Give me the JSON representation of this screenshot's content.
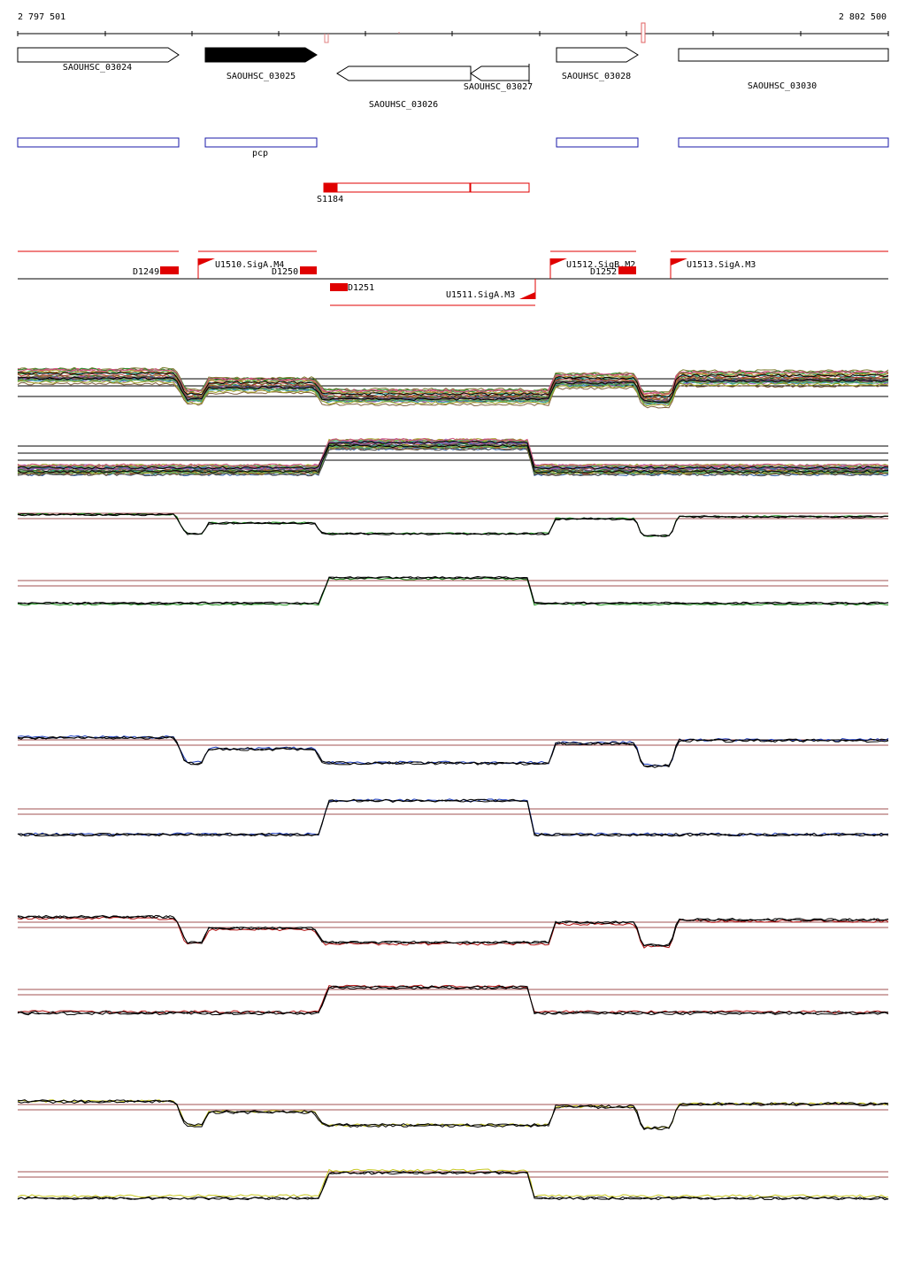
{
  "coords": {
    "start": "2 797 501",
    "end": "2 802 500"
  },
  "genes": [
    {
      "id": "g24",
      "label": "SAOUHSC_03024",
      "strand": "+",
      "filled": false
    },
    {
      "id": "g25",
      "label": "SAOUHSC_03025",
      "strand": "+",
      "filled": true
    },
    {
      "id": "g26",
      "label": "SAOUHSC_03026",
      "strand": "-",
      "filled": false
    },
    {
      "id": "g27",
      "label": "SAOUHSC_03027",
      "strand": "-",
      "filled": false
    },
    {
      "id": "g28",
      "label": "SAOUHSC_03028",
      "strand": "+",
      "filled": false
    },
    {
      "id": "g30",
      "label": "SAOUHSC_03030",
      "strand": "+",
      "filled": false
    }
  ],
  "blue_track": {
    "label": "pcp"
  },
  "red_feature": {
    "label": "S1184"
  },
  "regulatory": [
    {
      "label": "D1249"
    },
    {
      "label": "U1510.SigA.M4"
    },
    {
      "label": "D1250"
    },
    {
      "label": "D1251"
    },
    {
      "label": "U1511.SigA.M3"
    },
    {
      "label": "U1512.SigB.M2"
    },
    {
      "label": "D1252"
    },
    {
      "label": "U1513.SigA.M3"
    }
  ],
  "colors": {
    "gene_outline": "#000000",
    "blue_box": "#1a1aa8",
    "red_feature": "#e00000",
    "green_series": "#1a8f1a",
    "blue_series": "#1f3fbf",
    "red_series": "#b01010",
    "yellow_series": "#c8c820",
    "ref_line": "#a05050"
  }
}
